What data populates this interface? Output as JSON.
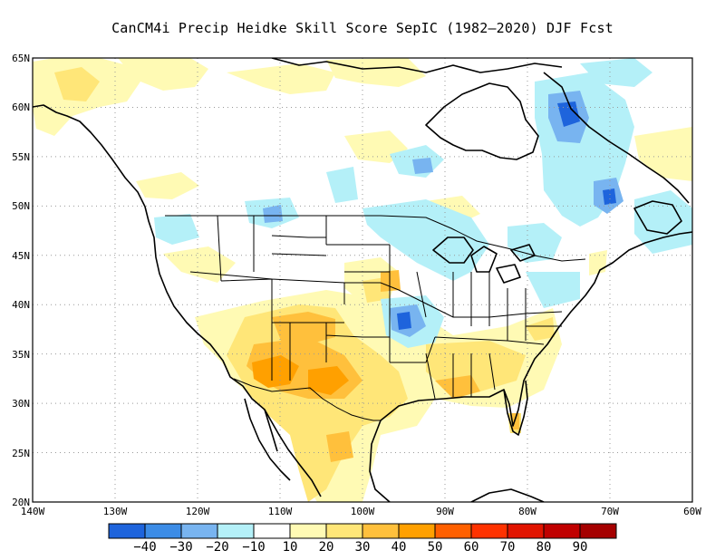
{
  "title": "CanCM4i Precip Heidke Skill Score SepIC (1982–2020) DJF Fcst",
  "map": {
    "lat_labels": [
      "65N",
      "60N",
      "55N",
      "50N",
      "45N",
      "40N",
      "35N",
      "30N",
      "25N",
      "20N"
    ],
    "lon_labels": [
      "140W",
      "130W",
      "120W",
      "110W",
      "100W",
      "90W",
      "80W",
      "70W",
      "60W"
    ],
    "extent": {
      "lon": [
        -140,
        -60
      ],
      "lat": [
        20,
        65
      ]
    }
  },
  "colorbar": {
    "labels": [
      "−40",
      "−30",
      "−20",
      "−10",
      "10",
      "20",
      "30",
      "40",
      "50",
      "60",
      "70",
      "80",
      "90"
    ],
    "colors": [
      "#1e64dc",
      "#3c8ce6",
      "#78b4f0",
      "#b4f0f8",
      "#ffffff",
      "#fffab4",
      "#ffe678",
      "#ffc03c",
      "#ffa000",
      "#ff6000",
      "#ff3200",
      "#e11400",
      "#c00000",
      "#a50000"
    ]
  },
  "field_colors": {
    "blue_dark": "#1e64dc",
    "blue_mid": "#78b4f0",
    "blue_light": "#b4f0f8",
    "yellow_light": "#fffab4",
    "yellow": "#ffe678",
    "orange_light": "#ffc03c",
    "orange": "#ffa000"
  }
}
